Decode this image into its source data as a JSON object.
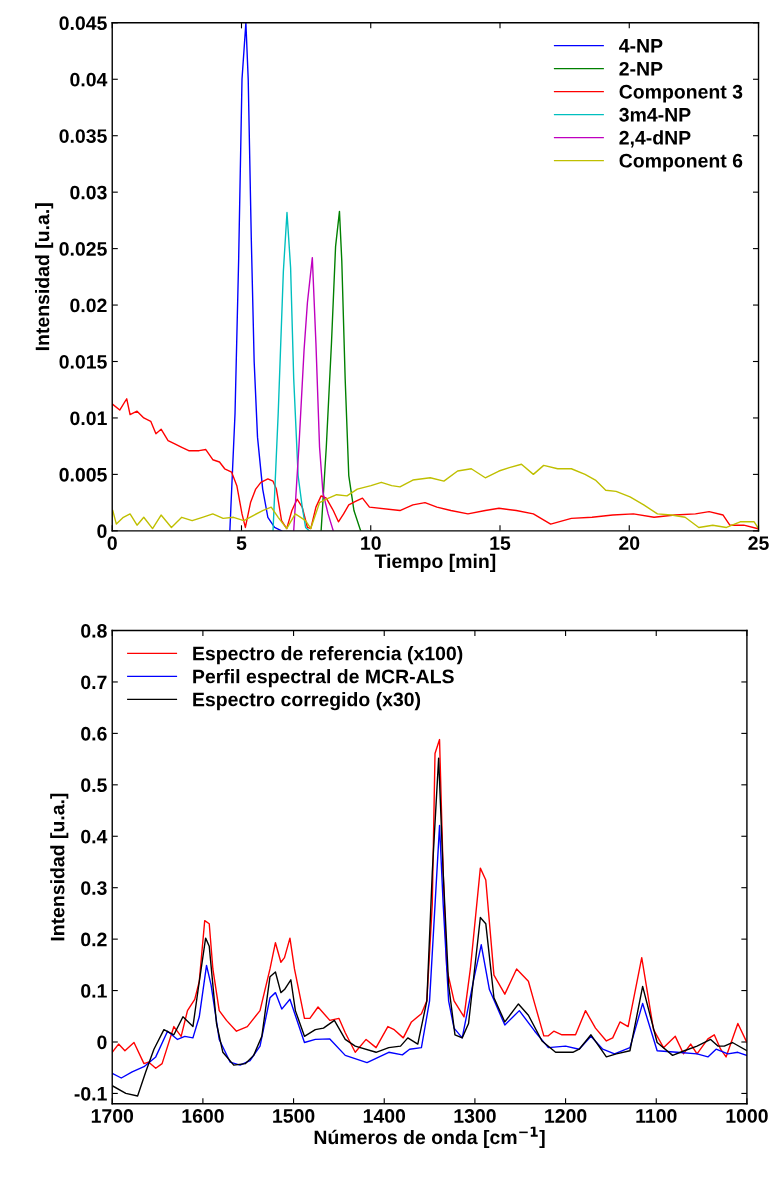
{
  "chart_data": [
    {
      "type": "line",
      "xlabel": "Tiempo [min]",
      "ylabel": "Intensidad [u.a.]",
      "xlim": [
        0,
        25
      ],
      "ylim": [
        0,
        0.045
      ],
      "xticks": [
        0,
        5,
        10,
        15,
        20,
        25
      ],
      "yticks": [
        0,
        0.005,
        0.01,
        0.015,
        0.02,
        0.025,
        0.03,
        0.035,
        0.04,
        0.045
      ],
      "grid": false,
      "legend": "top right",
      "marker": "none",
      "line_style": "solid",
      "series": [
        {
          "name": "4-NP",
          "color": "#0000ff",
          "x": [
            4.55,
            4.75,
            4.89,
            5.02,
            5.17,
            5.26,
            5.38,
            5.49,
            5.62,
            5.82,
            6.02,
            6.28,
            6.55
          ],
          "values": [
            0,
            0.0104,
            0.024,
            0.04,
            0.045,
            0.04,
            0.0258,
            0.015,
            0.0083,
            0.0037,
            0.0012,
            0.0003,
            0
          ]
        },
        {
          "name": "2-NP",
          "color": "#008000",
          "x": [
            8.08,
            8.28,
            8.48,
            8.64,
            8.79,
            8.88,
            9.01,
            9.15,
            9.35,
            9.61
          ],
          "values": [
            0,
            0.0074,
            0.0166,
            0.0252,
            0.0283,
            0.0239,
            0.0135,
            0.0049,
            0.0018,
            0
          ]
        },
        {
          "name": "Component 3",
          "color": "#ff0000",
          "x": [
            0.02,
            0.29,
            0.56,
            0.69,
            0.96,
            1.22,
            1.49,
            1.69,
            1.89,
            2.16,
            2.42,
            2.69,
            2.96,
            3.36,
            3.62,
            3.89,
            4.15,
            4.35,
            4.62,
            4.82,
            5.02,
            5.15,
            5.35,
            5.55,
            5.75,
            6.02,
            6.22,
            6.35,
            6.55,
            6.75,
            6.95,
            7.15,
            7.35,
            7.55,
            7.68,
            7.88,
            8.08,
            8.28,
            8.55,
            8.75,
            8.95,
            9.15,
            9.41,
            9.68,
            9.95,
            11.13,
            11.63,
            12.1,
            12.56,
            13.1,
            13.76,
            14.43,
            14.96,
            15.63,
            16.29,
            16.96,
            17.76,
            18.56,
            19.36,
            20.16,
            20.96,
            21.76,
            22.56,
            23.09,
            23.63,
            23.89,
            24.43,
            24.96
          ],
          "values": [
            0.0112,
            0.0107,
            0.0117,
            0.0103,
            0.0106,
            0.01,
            0.0097,
            0.0086,
            0.009,
            0.008,
            0.0077,
            0.0074,
            0.0071,
            0.0071,
            0.0072,
            0.0063,
            0.0061,
            0.0055,
            0.0052,
            0.004,
            0.0015,
            0.0003,
            0.0025,
            0.0037,
            0.0043,
            0.0046,
            0.0044,
            0.0037,
            0.0009,
            0.0002,
            0.0018,
            0.0028,
            0.0021,
            0.0003,
            0.0002,
            0.0021,
            0.0031,
            0.0029,
            0.0018,
            0.0008,
            0.0015,
            0.0023,
            0.0026,
            0.0029,
            0.0021,
            0.0018,
            0.0023,
            0.0025,
            0.0021,
            0.0018,
            0.0015,
            0.0018,
            0.002,
            0.0018,
            0.0015,
            0.0006,
            0.0011,
            0.0012,
            0.0014,
            0.0015,
            0.0012,
            0.0014,
            0.0015,
            0.0017,
            0.0014,
            0.0005,
            0.0005,
            0.0002
          ]
        },
        {
          "name": "3m4-NP",
          "color": "#00bfbf",
          "x": [
            6.22,
            6.42,
            6.62,
            6.76,
            6.9,
            7.02,
            7.19,
            7.35,
            7.48,
            7.62
          ],
          "values": [
            0,
            0.0104,
            0.023,
            0.0282,
            0.0233,
            0.0135,
            0.0049,
            0.0021,
            0.0003,
            0
          ]
        },
        {
          "name": "2,4-dNP",
          "color": "#bf00bf",
          "x": [
            7.02,
            7.22,
            7.42,
            7.55,
            7.74,
            7.88,
            8.02,
            8.15,
            8.35,
            8.55
          ],
          "values": [
            0,
            0.0074,
            0.016,
            0.0202,
            0.0242,
            0.0166,
            0.0074,
            0.0034,
            0.0015,
            0
          ]
        },
        {
          "name": "Component 6",
          "color": "#bfbf00",
          "x": [
            0.02,
            0.16,
            0.43,
            0.69,
            0.96,
            1.22,
            1.56,
            1.89,
            2.29,
            2.69,
            3.09,
            3.49,
            3.89,
            4.29,
            4.69,
            5.09,
            5.49,
            5.82,
            6.15,
            6.42,
            6.75,
            7.08,
            7.48,
            7.68,
            8.02,
            8.28,
            8.68,
            9.08,
            9.48,
            10.01,
            10.41,
            10.81,
            11.13,
            11.63,
            12.3,
            12.83,
            13.36,
            13.89,
            14.43,
            14.96,
            15.36,
            15.83,
            16.29,
            16.69,
            17.23,
            17.76,
            18.29,
            18.69,
            19.09,
            19.49,
            20.03,
            20.56,
            21.09,
            21.63,
            22.16,
            22.69,
            23.23,
            23.76,
            24.29,
            24.83,
            25
          ],
          "values": [
            0.0018,
            0.0006,
            0.0012,
            0.0015,
            0.0005,
            0.0012,
            0.0002,
            0.0014,
            0.0003,
            0.0012,
            0.0009,
            0.0012,
            0.0015,
            0.0011,
            0.0012,
            0.0009,
            0.0014,
            0.0018,
            0.0021,
            0.0012,
            0.0002,
            0.0015,
            0.0009,
            0.0002,
            0.0025,
            0.0028,
            0.0032,
            0.0031,
            0.0037,
            0.004,
            0.0043,
            0.004,
            0.0039,
            0.0045,
            0.0047,
            0.0044,
            0.0053,
            0.0055,
            0.0047,
            0.0053,
            0.0056,
            0.0059,
            0.005,
            0.0058,
            0.0055,
            0.0055,
            0.005,
            0.0045,
            0.0036,
            0.0035,
            0.003,
            0.0023,
            0.0015,
            0.0014,
            0.0012,
            0.0003,
            0.0005,
            0.0003,
            0.0008,
            0.0008,
            0.0002
          ]
        }
      ]
    },
    {
      "type": "line",
      "xlabel": "Números de onda [cm$^{−1}$]",
      "ylabel": "Intensidad [u.a.]",
      "xlim": [
        1700,
        1000
      ],
      "ylim": [
        -0.12,
        0.8
      ],
      "xticks": [
        1700,
        1600,
        1500,
        1400,
        1300,
        1200,
        1100,
        1000
      ],
      "yticks": [
        -0.1,
        0,
        0.1,
        0.2,
        0.3,
        0.4,
        0.5,
        0.6,
        0.7,
        0.8
      ],
      "grid": false,
      "legend": "top left",
      "marker": "none",
      "line_style": "solid",
      "series": [
        {
          "name": "Espectro de referencia (x100)",
          "color": "#ff0000",
          "x": [
            1700,
            1693,
            1686,
            1676,
            1665,
            1660,
            1652,
            1645,
            1632,
            1624,
            1617,
            1609,
            1604,
            1598,
            1593,
            1589,
            1582,
            1574,
            1563,
            1551,
            1537,
            1526,
            1520,
            1514,
            1510,
            1504,
            1499,
            1488,
            1482,
            1473,
            1460,
            1450,
            1443,
            1432,
            1420,
            1409,
            1396,
            1389,
            1379,
            1370,
            1359,
            1353,
            1347,
            1344,
            1339,
            1335,
            1331,
            1323,
            1312,
            1305,
            1294,
            1288,
            1279,
            1267,
            1254,
            1241,
            1234,
            1224,
            1219,
            1213,
            1204,
            1189,
            1178,
            1167,
            1155,
            1148,
            1140,
            1131,
            1116,
            1103,
            1092,
            1079,
            1070,
            1062,
            1055,
            1043,
            1036,
            1029,
            1023,
            1010,
            1000
          ],
          "values": [
            -0.02,
            -0.004,
            -0.017,
            -0.001,
            -0.042,
            -0.039,
            -0.051,
            -0.042,
            0.03,
            0.011,
            0.061,
            0.083,
            0.118,
            0.236,
            0.23,
            0.142,
            0.061,
            0.042,
            0.021,
            0.03,
            0.061,
            0.142,
            0.193,
            0.155,
            0.164,
            0.202,
            0.142,
            0.046,
            0.046,
            0.068,
            0.042,
            0.046,
            0.018,
            -0.02,
            0.005,
            -0.011,
            0.03,
            0.024,
            0.008,
            0.039,
            0.055,
            0.08,
            0.268,
            0.561,
            0.588,
            0.33,
            0.142,
            0.08,
            0.049,
            0.142,
            0.338,
            0.315,
            0.13,
            0.093,
            0.142,
            0.118,
            0.074,
            0.012,
            0.012,
            0.021,
            0.014,
            0.014,
            0.061,
            0.027,
            0.002,
            0.008,
            0.039,
            0.03,
            0.164,
            0.024,
            -0.011,
            0.011,
            -0.023,
            -0.004,
            -0.023,
            0.006,
            0.014,
            -0.014,
            -0.029,
            0.036,
            -0.001
          ]
        },
        {
          "name": "Perfil espectral de MCR-ALS",
          "color": "#0000ff",
          "x": [
            1700,
            1690,
            1678,
            1665,
            1652,
            1639,
            1628,
            1620,
            1611,
            1604,
            1596,
            1591,
            1582,
            1570,
            1559,
            1548,
            1537,
            1526,
            1520,
            1513,
            1504,
            1488,
            1476,
            1460,
            1443,
            1419,
            1395,
            1380,
            1372,
            1359,
            1350,
            1339,
            1335,
            1329,
            1323,
            1314,
            1301,
            1293,
            1284,
            1267,
            1251,
            1234,
            1219,
            1200,
            1185,
            1172,
            1159,
            1146,
            1129,
            1115,
            1099,
            1077,
            1055,
            1043,
            1034,
            1021,
            1010,
            1000
          ],
          "values": [
            -0.061,
            -0.07,
            -0.058,
            -0.048,
            -0.029,
            0.021,
            0.005,
            0.011,
            0.008,
            0.049,
            0.149,
            0.111,
            0.005,
            -0.039,
            -0.045,
            -0.036,
            -0.008,
            0.086,
            0.096,
            0.064,
            0.083,
            -0.001,
            0.005,
            0.006,
            -0.026,
            -0.04,
            -0.02,
            -0.025,
            -0.014,
            -0.011,
            0.08,
            0.421,
            0.268,
            0.08,
            0.027,
            0.008,
            0.124,
            0.189,
            0.102,
            0.033,
            0.061,
            0.021,
            -0.011,
            -0.008,
            -0.014,
            0.011,
            -0.014,
            -0.023,
            -0.011,
            0.075,
            -0.017,
            -0.02,
            -0.023,
            -0.029,
            -0.014,
            -0.023,
            -0.02,
            -0.026
          ]
        },
        {
          "name": "Espectro corregido (x30)",
          "color": "#000000",
          "x": [
            1700,
            1685,
            1672,
            1663,
            1654,
            1643,
            1632,
            1622,
            1611,
            1605,
            1597,
            1593,
            1585,
            1578,
            1566,
            1553,
            1544,
            1535,
            1526,
            1520,
            1514,
            1510,
            1503,
            1498,
            1488,
            1476,
            1467,
            1455,
            1443,
            1432,
            1409,
            1395,
            1382,
            1374,
            1363,
            1353,
            1347,
            1340,
            1335,
            1329,
            1322,
            1314,
            1307,
            1294,
            1288,
            1279,
            1267,
            1252,
            1241,
            1226,
            1211,
            1192,
            1185,
            1172,
            1155,
            1144,
            1129,
            1115,
            1099,
            1082,
            1069,
            1055,
            1040,
            1032,
            1025,
            1016,
            1000
          ],
          "values": [
            -0.085,
            -0.1,
            -0.105,
            -0.058,
            -0.014,
            0.024,
            0.014,
            0.049,
            0.03,
            0.105,
            0.202,
            0.186,
            0.036,
            -0.02,
            -0.045,
            -0.042,
            -0.026,
            0.011,
            0.127,
            0.136,
            0.096,
            0.102,
            0.121,
            0.061,
            0.011,
            0.024,
            0.027,
            0.042,
            0.005,
            -0.008,
            -0.02,
            -0.011,
            -0.008,
            0.008,
            -0.004,
            0.08,
            0.33,
            0.552,
            0.33,
            0.111,
            0.014,
            0.008,
            0.036,
            0.242,
            0.23,
            0.086,
            0.039,
            0.074,
            0.052,
            0.002,
            -0.02,
            -0.02,
            -0.014,
            0.014,
            -0.029,
            -0.023,
            -0.017,
            0.108,
            -0.001,
            -0.026,
            -0.017,
            -0.008,
            0.005,
            -0.008,
            -0.008,
            -0.001,
            -0.017
          ]
        }
      ]
    }
  ]
}
